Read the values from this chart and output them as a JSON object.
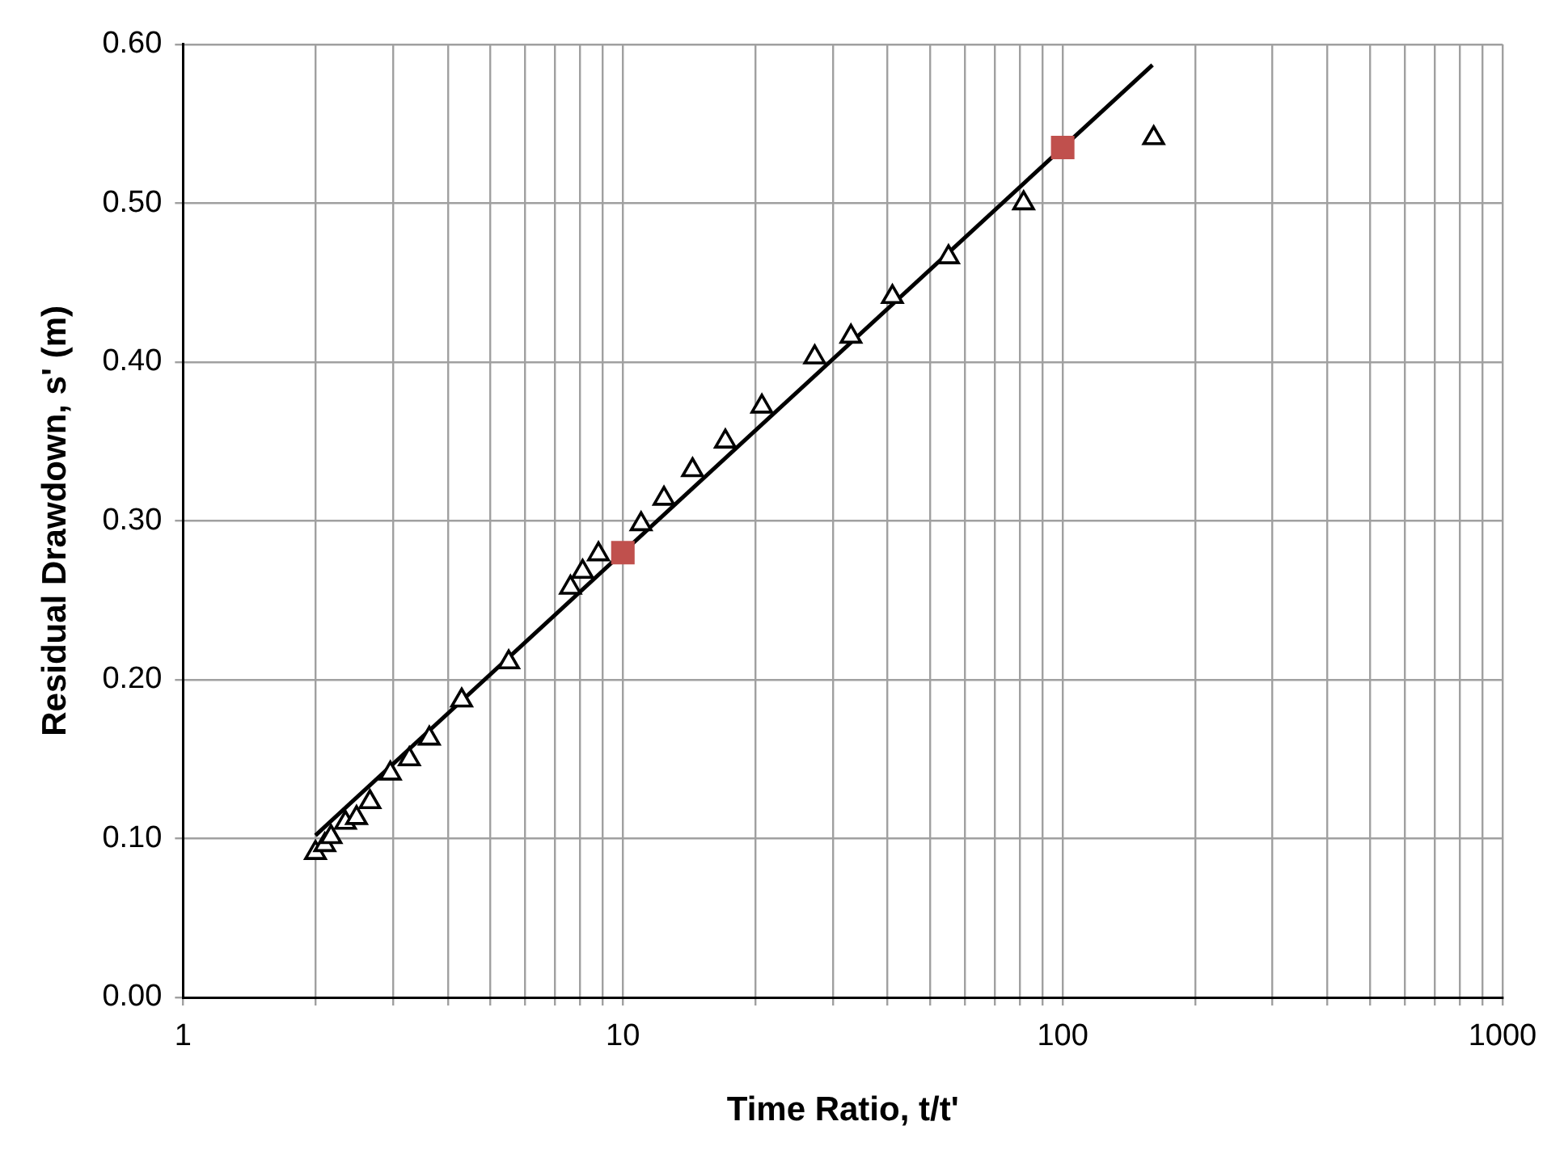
{
  "chart_data": {
    "type": "scatter",
    "xlabel": "Time Ratio, t/t'",
    "ylabel": "Residual Drawdown, s' (m)",
    "log": "x",
    "grid": true,
    "legend": false,
    "xlim": [
      1,
      1000
    ],
    "xticks": [
      1,
      {
        "value": 2,
        "label": null
      },
      {
        "value": 3,
        "label": null
      },
      {
        "value": 4,
        "label": null
      },
      {
        "value": 5,
        "label": null
      },
      {
        "value": 6,
        "label": null
      },
      {
        "value": 7,
        "label": null
      },
      {
        "value": 8,
        "label": null
      },
      {
        "value": 9,
        "label": null
      },
      10,
      {
        "value": 20,
        "label": null
      },
      {
        "value": 30,
        "label": null
      },
      {
        "value": 40,
        "label": null
      },
      {
        "value": 50,
        "label": null
      },
      {
        "value": 60,
        "label": null
      },
      {
        "value": 70,
        "label": null
      },
      {
        "value": 80,
        "label": null
      },
      {
        "value": 90,
        "label": null
      },
      100,
      {
        "value": 200,
        "label": null
      },
      {
        "value": 300,
        "label": null
      },
      {
        "value": 400,
        "label": null
      },
      {
        "value": 500,
        "label": null
      },
      {
        "value": 600,
        "label": null
      },
      {
        "value": 700,
        "label": null
      },
      {
        "value": 800,
        "label": null
      },
      {
        "value": 900,
        "label": null
      },
      1000
    ],
    "ylim": [
      0,
      0.6
    ],
    "yticks": [
      {
        "value": 0,
        "label": "0.00"
      },
      {
        "value": 0.1,
        "label": "0.10"
      },
      {
        "value": 0.2,
        "label": "0.20"
      },
      {
        "value": 0.3,
        "label": "0.30"
      },
      {
        "value": 0.4,
        "label": "0.40"
      },
      {
        "value": 0.5,
        "label": "0.50"
      },
      {
        "value": 0.6,
        "label": "0.60"
      }
    ],
    "series": [
      {
        "type": "line",
        "color": "#000000",
        "marker": "none",
        "line_style": "solid",
        "x": [
          2,
          160
        ],
        "values": [
          0.102,
          0.587
        ]
      },
      {
        "type": "scatter",
        "color": "#000000",
        "marker": "triangle",
        "x": [
          2.0,
          2.1,
          2.17,
          2.34,
          2.48,
          2.66,
          2.96,
          3.27,
          3.63,
          4.3,
          5.5,
          7.6,
          8.1,
          8.8,
          11.0,
          12.4,
          14.4,
          17.1,
          20.7,
          27.3,
          33,
          41,
          55,
          81.5,
          161
        ],
        "values": [
          0.091,
          0.096,
          0.101,
          0.11,
          0.113,
          0.123,
          0.141,
          0.15,
          0.163,
          0.187,
          0.211,
          0.258,
          0.268,
          0.279,
          0.298,
          0.314,
          0.332,
          0.35,
          0.372,
          0.403,
          0.416,
          0.441,
          0.466,
          0.5,
          0.541
        ]
      },
      {
        "type": "scatter",
        "color": "#c0504d",
        "marker": "square",
        "x": [
          10,
          100
        ],
        "values": [
          0.28,
          0.535
        ]
      }
    ]
  }
}
